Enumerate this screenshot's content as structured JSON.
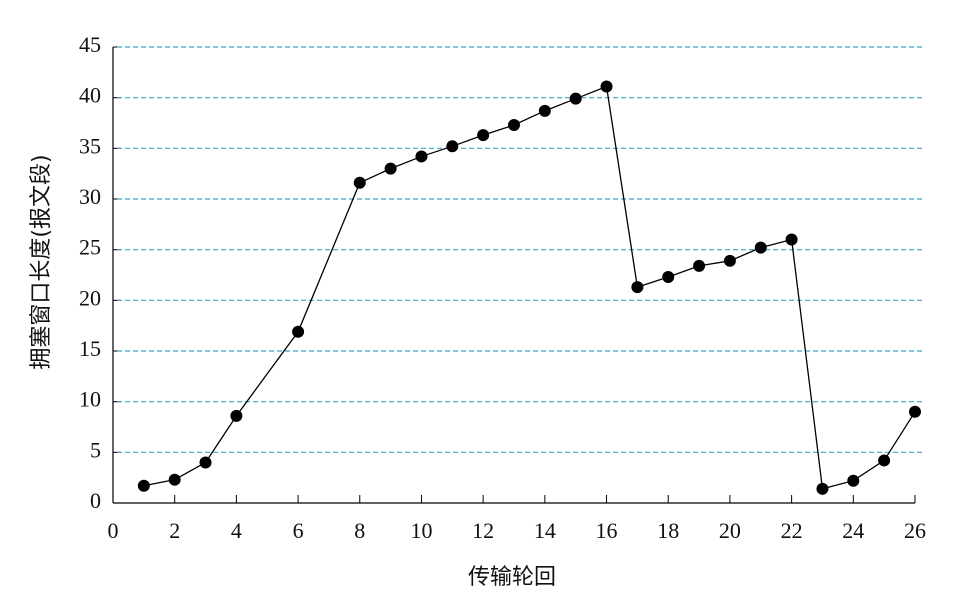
{
  "chart_data": {
    "type": "line",
    "x_label": "传输轮回",
    "y_label": "拥塞窗口长度(报文段)",
    "x": [
      1,
      2,
      3,
      4,
      6,
      8,
      9,
      10,
      11,
      12,
      13,
      14,
      15,
      16,
      17,
      18,
      19,
      20,
      21,
      22,
      23,
      24,
      25,
      26
    ],
    "series": [
      {
        "color": "#000000",
        "values": [
          1.7,
          2.3,
          4.0,
          8.6,
          16.9,
          31.6,
          33.0,
          34.2,
          35.2,
          36.3,
          37.3,
          38.7,
          39.9,
          41.1,
          21.3,
          22.3,
          23.4,
          23.9,
          25.2,
          26.0,
          1.4,
          2.2,
          4.2,
          9.0
        ]
      }
    ],
    "xlim": [
      0,
      26
    ],
    "xticks": [
      0,
      2,
      4,
      6,
      8,
      10,
      12,
      14,
      16,
      18,
      20,
      22,
      24,
      26
    ],
    "ylim": [
      0,
      45
    ],
    "yticks": [
      0,
      5,
      10,
      15,
      20,
      25,
      30,
      35,
      40,
      45
    ],
    "grid": true,
    "grid_color": "#2aa7d8"
  }
}
